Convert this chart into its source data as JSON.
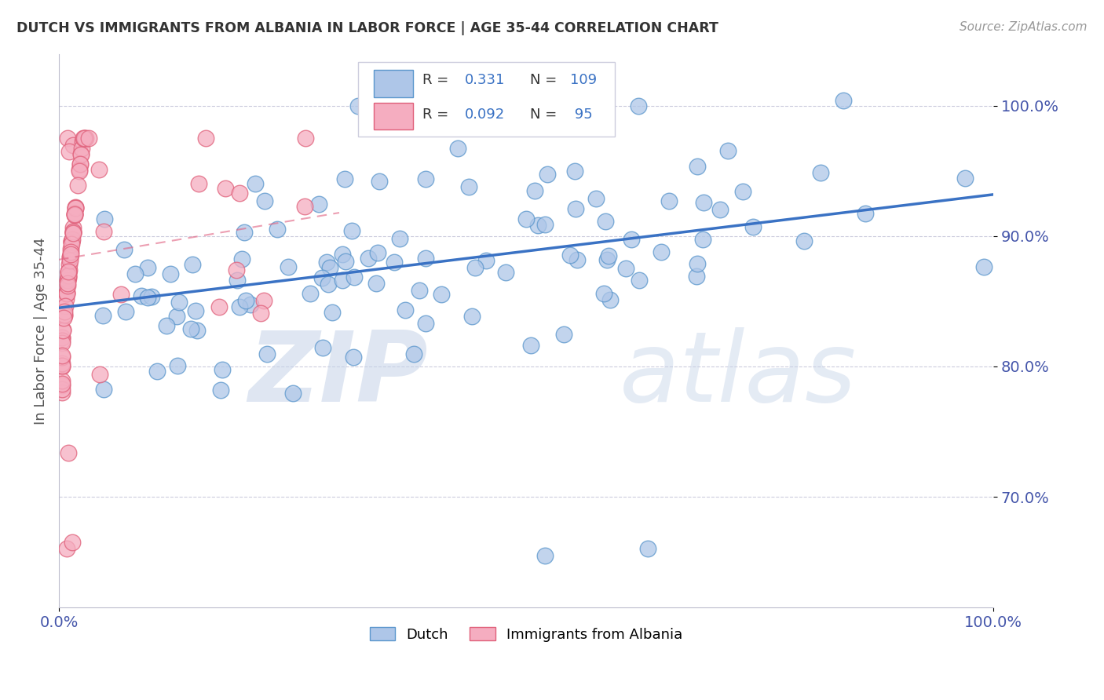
{
  "title": "DUTCH VS IMMIGRANTS FROM ALBANIA IN LABOR FORCE | AGE 35-44 CORRELATION CHART",
  "source": "Source: ZipAtlas.com",
  "ylabel": "In Labor Force | Age 35-44",
  "xlim": [
    0.0,
    1.0
  ],
  "ylim": [
    0.615,
    1.04
  ],
  "yticks": [
    0.7,
    0.8,
    0.9,
    1.0
  ],
  "ytick_labels": [
    "70.0%",
    "80.0%",
    "90.0%",
    "100.0%"
  ],
  "xticks": [
    0.0,
    1.0
  ],
  "xtick_labels": [
    "0.0%",
    "100.0%"
  ],
  "legend_R_dutch": "0.331",
  "legend_N_dutch": "109",
  "legend_R_albania": "0.092",
  "legend_N_albania": "95",
  "dutch_color": "#aec6e8",
  "albania_color": "#f5adc0",
  "dutch_edge_color": "#5a96cc",
  "albania_edge_color": "#e0607a",
  "trend_dutch_color": "#3a72c4",
  "trend_albania_color": "#e06080",
  "watermark_zip": "ZIP",
  "watermark_atlas": "atlas",
  "background_color": "#ffffff",
  "title_color": "#333333",
  "axis_label_color": "#555555",
  "tick_color": "#4455aa",
  "grid_color": "#ccccdd",
  "trend_dutch_x0": 0.0,
  "trend_dutch_y0": 0.845,
  "trend_dutch_x1": 1.0,
  "trend_dutch_y1": 0.932,
  "trend_albania_x0": 0.0,
  "trend_albania_y0": 0.882,
  "trend_albania_x1": 0.3,
  "trend_albania_y1": 0.918
}
